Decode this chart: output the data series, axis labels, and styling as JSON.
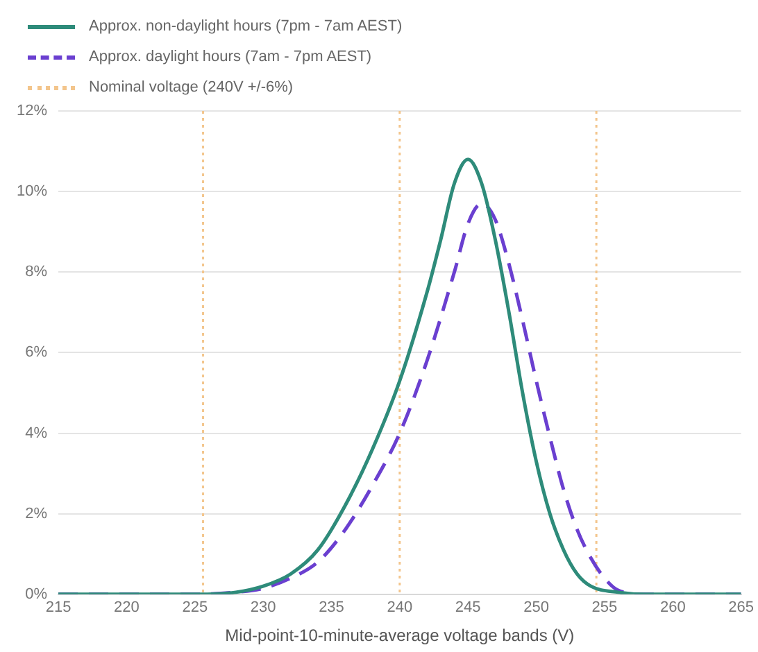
{
  "chart_data": {
    "type": "line",
    "xlabel": "Mid-point-10-minute-average voltage bands (V)",
    "xlim": [
      215,
      265
    ],
    "xticks": [
      215,
      220,
      225,
      230,
      235,
      240,
      245,
      250,
      255,
      260,
      265
    ],
    "ylim": [
      0,
      12
    ],
    "yticks": [
      {
        "value": 0,
        "label": "0%"
      },
      {
        "value": 2,
        "label": "2%"
      },
      {
        "value": 4,
        "label": "4%"
      },
      {
        "value": 6,
        "label": "6%"
      },
      {
        "value": 8,
        "label": "8%"
      },
      {
        "value": 10,
        "label": "10%"
      },
      {
        "value": 12,
        "label": "12%"
      }
    ],
    "grid": "y",
    "legend": "top left",
    "marker": "none",
    "series": [
      {
        "name": "Approx. non-daylight hours (7pm - 7am AEST)",
        "color": "#2e8b7a",
        "line_style": "solid",
        "x": [
          215,
          220,
          225,
          228,
          230,
          232,
          234,
          236,
          238,
          240,
          242,
          243,
          244,
          245,
          246,
          247,
          248,
          249,
          250,
          251,
          252,
          253,
          254,
          256,
          258,
          265
        ],
        "values": [
          0,
          0,
          0,
          0.05,
          0.2,
          0.5,
          1.1,
          2.2,
          3.6,
          5.3,
          7.5,
          8.8,
          10.2,
          10.8,
          10.2,
          8.8,
          7.0,
          5.0,
          3.3,
          2.0,
          1.1,
          0.5,
          0.2,
          0.05,
          0,
          0
        ]
      },
      {
        "name": "Approx. daylight hours (7am - 7pm AEST)",
        "color": "#6a3fd0",
        "line_style": "dashed",
        "x": [
          215,
          220,
          225,
          228,
          230,
          232,
          234,
          236,
          238,
          240,
          242,
          244,
          245,
          246,
          247,
          248,
          249,
          250,
          251,
          252,
          253,
          254,
          255,
          256,
          258,
          265
        ],
        "values": [
          0,
          0,
          0,
          0.05,
          0.15,
          0.4,
          0.8,
          1.6,
          2.7,
          4.0,
          5.8,
          8.0,
          9.2,
          9.7,
          9.3,
          8.2,
          6.8,
          5.3,
          3.9,
          2.6,
          1.6,
          0.9,
          0.4,
          0.1,
          0,
          0
        ]
      }
    ],
    "ref_lines": [
      {
        "axis": "x",
        "value": 225.6,
        "label": "Nominal voltage (240V +/-6%)",
        "color": "#f3c58c",
        "line_style": "dotted"
      },
      {
        "axis": "x",
        "value": 240,
        "color": "#f3c58c",
        "line_style": "dotted"
      },
      {
        "axis": "x",
        "value": 254.4,
        "color": "#f3c58c",
        "line_style": "dotted"
      }
    ]
  }
}
